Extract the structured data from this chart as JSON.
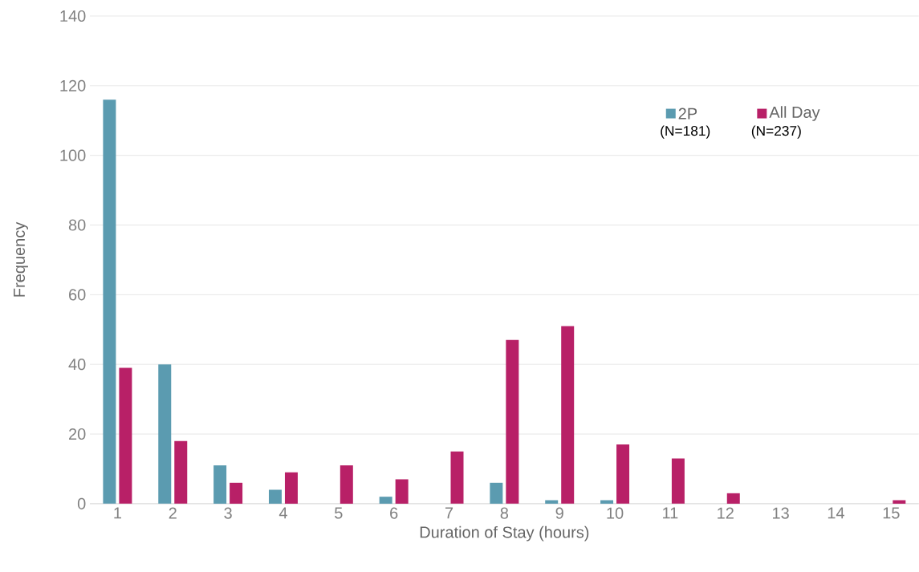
{
  "chart_data": {
    "type": "bar",
    "xlabel": "Duration of Stay (hours)",
    "ylabel": "Frequency",
    "categories": [
      "1",
      "2",
      "3",
      "4",
      "5",
      "6",
      "7",
      "8",
      "9",
      "10",
      "11",
      "12",
      "13",
      "14",
      "15"
    ],
    "series": [
      {
        "name": "2P",
        "color": "#5b9bb0",
        "values": [
          116,
          40,
          11,
          4,
          0,
          2,
          0,
          6,
          1,
          1,
          0,
          0,
          0,
          0,
          0
        ]
      },
      {
        "name": "All Day",
        "color": "#b82067",
        "values": [
          39,
          18,
          6,
          9,
          11,
          7,
          15,
          47,
          51,
          17,
          13,
          3,
          0,
          0,
          1
        ]
      }
    ],
    "ylim": [
      0,
      140
    ],
    "yticks": [
      0,
      20,
      40,
      60,
      80,
      100,
      120,
      140
    ],
    "grid": "y",
    "legend": "top right",
    "annotations": [
      "(N=181)",
      "(N=237)"
    ]
  }
}
